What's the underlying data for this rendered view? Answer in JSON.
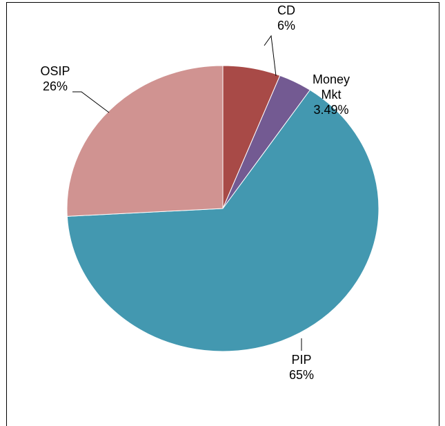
{
  "chart_data": {
    "type": "pie",
    "categories": [
      "CD",
      "Money Mkt",
      "PIP",
      "OSIP"
    ],
    "values": [
      6,
      3.49,
      65,
      26
    ],
    "value_labels": [
      "6%",
      "3.49%",
      "65%",
      "26%"
    ],
    "colors": [
      "#a84a47",
      "#735a92",
      "#4398b0",
      "#d09391"
    ]
  }
}
